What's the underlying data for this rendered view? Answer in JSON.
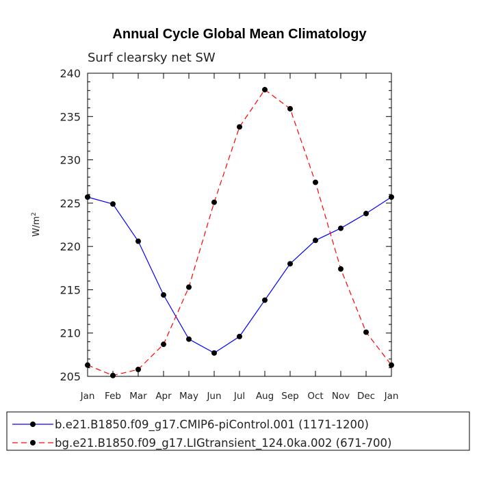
{
  "chart_data": {
    "type": "line",
    "title": "Annual Cycle Global Mean Climatology",
    "subtitle": "Surf clearsky net SW",
    "ylabel": "W/m",
    "ylabel_superscript": "2",
    "xlabel": "",
    "categories": [
      "Jan",
      "Feb",
      "Mar",
      "Apr",
      "May",
      "Jun",
      "Jul",
      "Aug",
      "Sep",
      "Oct",
      "Nov",
      "Dec",
      "Jan"
    ],
    "ylim": [
      205,
      240
    ],
    "yticks": [
      205,
      210,
      215,
      220,
      225,
      230,
      235,
      240
    ],
    "series": [
      {
        "name": "b.e21.B1850.f09_g17.CMIP6-piControl.001 (1171-1200)",
        "color": "#0000ff",
        "dash": "solid",
        "values": [
          225.7,
          224.9,
          220.6,
          214.4,
          209.3,
          207.7,
          209.6,
          213.8,
          218.0,
          220.7,
          222.1,
          223.8,
          225.7
        ]
      },
      {
        "name": "bg.e21.B1850.f09_g17.LIGtransient_124.0ka.002 (671-700)",
        "color": "#ff0000",
        "dash": "dashed",
        "values": [
          206.3,
          205.1,
          205.8,
          208.7,
          215.3,
          225.1,
          233.8,
          238.1,
          235.9,
          227.4,
          217.4,
          210.1,
          206.3
        ]
      }
    ]
  }
}
